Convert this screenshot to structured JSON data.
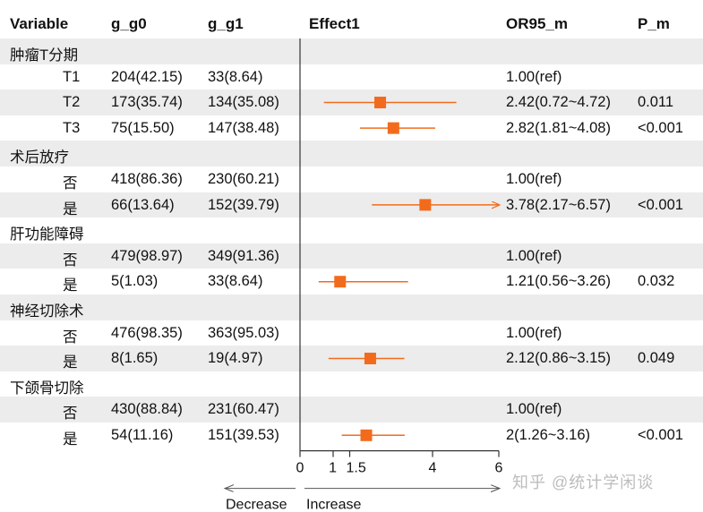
{
  "headers": {
    "variable": "Variable",
    "g0": "g_g0",
    "g1": "g_g1",
    "effect": "Effect1",
    "or": "OR95_m",
    "p": "P_m"
  },
  "colors": {
    "marker": "#F26B1D",
    "axis": "#333333",
    "shade": "#ECECEC"
  },
  "rows": [
    {
      "type": "group",
      "label": "肿瘤T分期"
    },
    {
      "type": "item",
      "label": "T1",
      "g0": "204(42.15)",
      "g1": "33(8.64)",
      "or_text": "1.00(ref)",
      "p_text": ""
    },
    {
      "type": "item",
      "label": "T2",
      "g0": "173(35.74)",
      "g1": "134(35.08)",
      "or_text": "2.42(0.72~4.72)",
      "p_text": "0.011"
    },
    {
      "type": "item",
      "label": "T3",
      "g0": "75(15.50)",
      "g1": "147(38.48)",
      "or_text": "2.82(1.81~4.08)",
      "p_text": "<0.001"
    },
    {
      "type": "group",
      "label": "术后放疗"
    },
    {
      "type": "item",
      "label": "否",
      "g0": "418(86.36)",
      "g1": "230(60.21)",
      "or_text": "1.00(ref)",
      "p_text": ""
    },
    {
      "type": "item",
      "label": "是",
      "g0": "66(13.64)",
      "g1": "152(39.79)",
      "or_text": "3.78(2.17~6.57)",
      "p_text": "<0.001"
    },
    {
      "type": "group",
      "label": "肝功能障碍"
    },
    {
      "type": "item",
      "label": "否",
      "g0": "479(98.97)",
      "g1": "349(91.36)",
      "or_text": "1.00(ref)",
      "p_text": ""
    },
    {
      "type": "item",
      "label": "是",
      "g0": "5(1.03)",
      "g1": "33(8.64)",
      "or_text": "1.21(0.56~3.26)",
      "p_text": "0.032"
    },
    {
      "type": "group",
      "label": "神经切除术"
    },
    {
      "type": "item",
      "label": "否",
      "g0": "476(98.35)",
      "g1": "363(95.03)",
      "or_text": "1.00(ref)",
      "p_text": ""
    },
    {
      "type": "item",
      "label": "是",
      "g0": "8(1.65)",
      "g1": "19(4.97)",
      "or_text": "2.12(0.86~3.15)",
      "p_text": "0.049"
    },
    {
      "type": "group",
      "label": "下颌骨切除"
    },
    {
      "type": "item",
      "label": "否",
      "g0": "430(88.84)",
      "g1": "231(60.47)",
      "or_text": "1.00(ref)",
      "p_text": ""
    },
    {
      "type": "item",
      "label": "是",
      "g0": "54(11.16)",
      "g1": "151(39.53)",
      "or_text": "2(1.26~3.16)",
      "p_text": "<0.001"
    }
  ],
  "chart_data": {
    "type": "scatter",
    "title": "Effect1",
    "xlim": [
      0,
      6
    ],
    "x_ticks": [
      0,
      1,
      1.5,
      4,
      6
    ],
    "x_tick_labels": [
      "0",
      "1",
      "1.5",
      "4",
      "6"
    ],
    "points": [
      {
        "row": 2,
        "estimate": 2.42,
        "lower": 0.72,
        "upper": 4.72
      },
      {
        "row": 3,
        "estimate": 2.82,
        "lower": 1.81,
        "upper": 4.08
      },
      {
        "row": 6,
        "estimate": 3.78,
        "lower": 2.17,
        "upper": 6.57,
        "clipped_upper": true
      },
      {
        "row": 9,
        "estimate": 1.21,
        "lower": 0.56,
        "upper": 3.26
      },
      {
        "row": 12,
        "estimate": 2.12,
        "lower": 0.86,
        "upper": 3.15
      },
      {
        "row": 15,
        "estimate": 2,
        "lower": 1.26,
        "upper": 3.16
      }
    ],
    "arrow_left_label": "Decrease",
    "arrow_right_label": "Increase"
  },
  "watermark": "知乎 @统计学闲谈"
}
